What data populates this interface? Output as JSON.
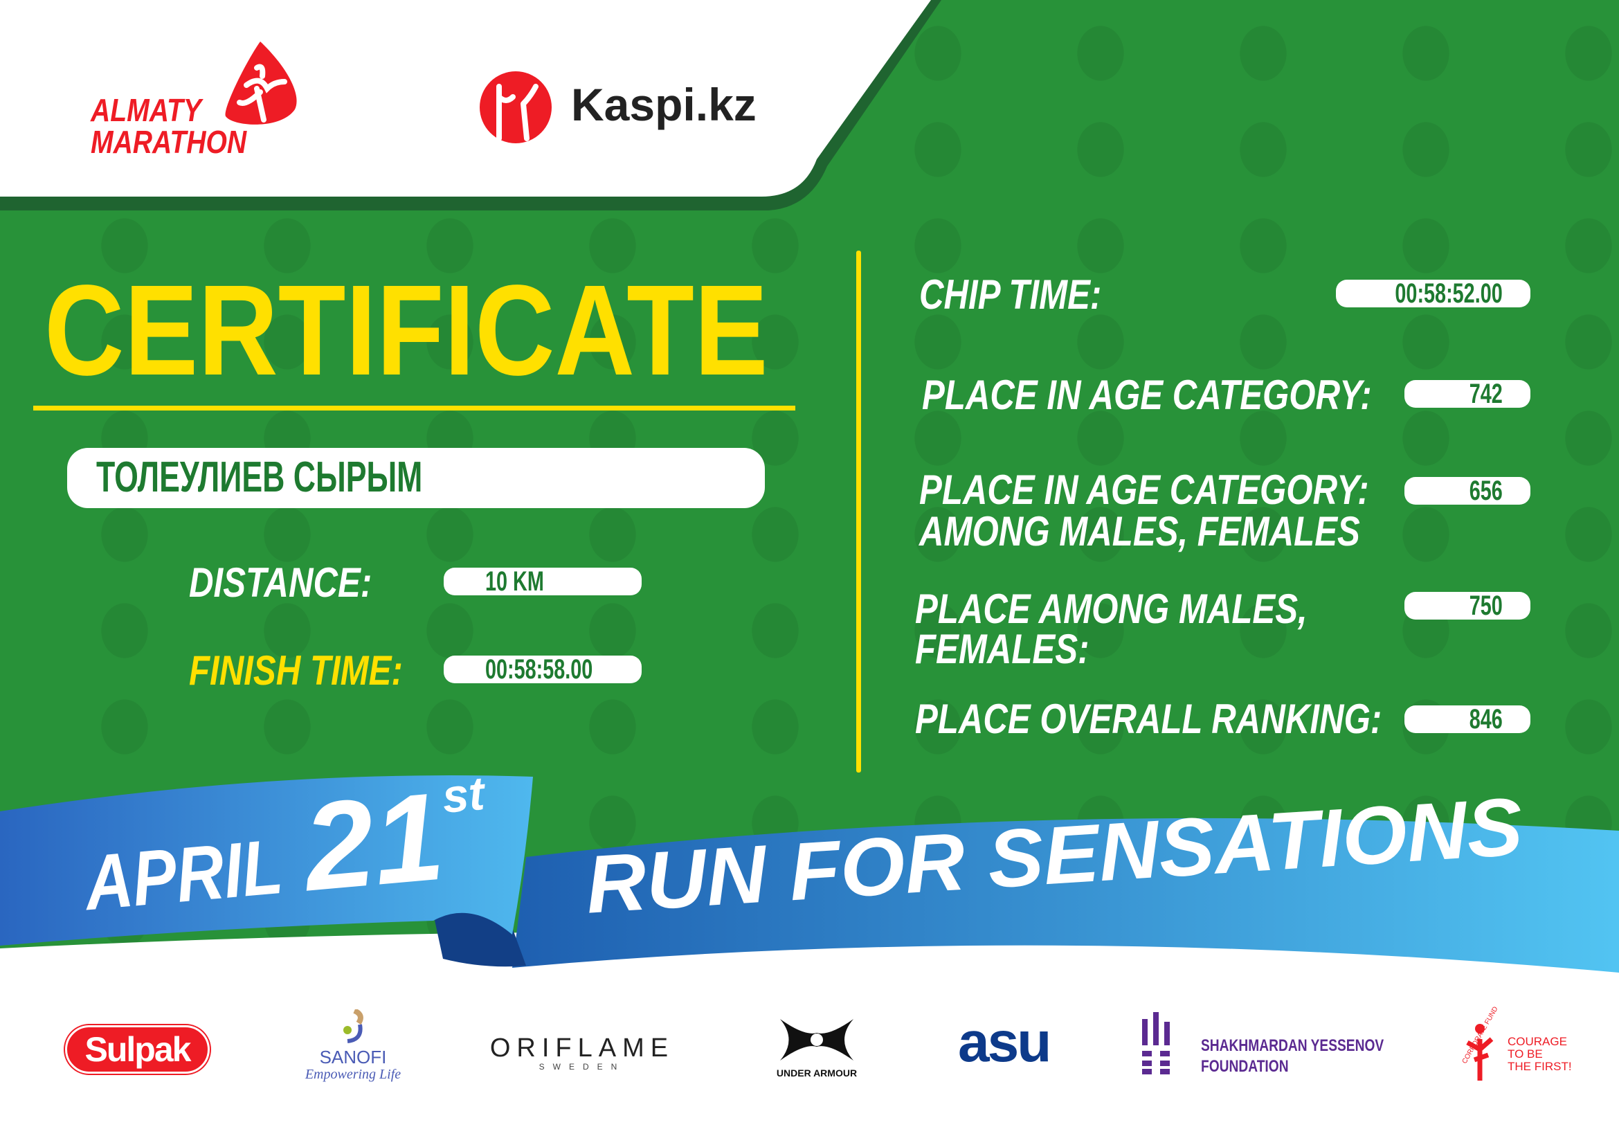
{
  "header": {
    "event_logo": {
      "line1": "ALMATY",
      "line2": "MARATHON"
    },
    "sponsor_logo": "Kaspi.kz"
  },
  "title": "CERTIFICATE",
  "participant_name": "ТОЛЕУЛИЕВ СЫРЫМ",
  "left_fields": [
    {
      "label": "DISTANCE:",
      "value": "10 KM"
    },
    {
      "label": "FINISH TIME:",
      "value": "00:58:58.00"
    }
  ],
  "right_fields": [
    {
      "label": "CHIP TIME:",
      "value": "00:58:52.00"
    },
    {
      "label": "PLACE IN AGE CATEGORY:",
      "value": "742"
    },
    {
      "label_line1": "PLACE IN AGE CATEGORY:",
      "label_line2": "AMONG MALES, FEMALES",
      "value": "656"
    },
    {
      "label_line1": "PLACE AMONG MALES,",
      "label_line2": "FEMALES:",
      "value": "750"
    },
    {
      "label": "PLACE OVERALL RANKING:",
      "value": "846"
    }
  ],
  "ribbon": {
    "month": "APRIL",
    "day": "21",
    "suffix": "st",
    "slogan": "RUN FOR SENSATIONS"
  },
  "sponsors": {
    "sulpak": "Sulpak",
    "sanofi": {
      "name": "SANOFI",
      "tagline": "Empowering Life"
    },
    "oriflame": {
      "name": "ORIFLAME",
      "sub": "SWEDEN"
    },
    "under_armour": "UNDER ARMOUR",
    "asu": "asu",
    "yessenov": {
      "line1": "SHAKHMARDAN YESSENOV",
      "line2": "FOUNDATION"
    },
    "courage": {
      "arc": "CORPORATE FUND",
      "line1": "COURAGE",
      "line2": "TO BE",
      "line3": "THE FIRST!"
    }
  },
  "colors": {
    "green": "#2a9a3c",
    "dark_green": "#1f6430",
    "yellow": "#ffe000",
    "red": "#ee1c25",
    "ribbon_dark": "#1e5fb0",
    "ribbon_light": "#52c4f2"
  }
}
